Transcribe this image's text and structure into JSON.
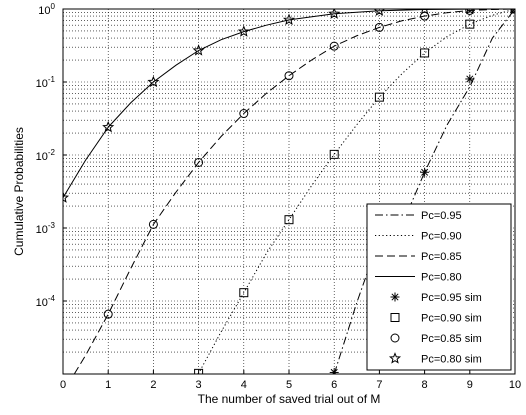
{
  "chart_data": {
    "type": "line",
    "title": "",
    "xlabel": "The number of saved trial out of M",
    "ylabel": "Cumulative Probabilities",
    "xlim": [
      0,
      10
    ],
    "ylim": [
      1e-05,
      1
    ],
    "yscale": "log",
    "grid": true,
    "legend_position": "bottom-right",
    "x_ticks": [
      "0",
      "1",
      "2",
      "3",
      "4",
      "5",
      "6",
      "7",
      "8",
      "9",
      "10"
    ],
    "y_ticks": [
      {
        "base": "10",
        "exp": "0"
      },
      {
        "base": "10",
        "exp": "-1"
      },
      {
        "base": "10",
        "exp": "-2"
      },
      {
        "base": "10",
        "exp": "-3"
      },
      {
        "base": "10",
        "exp": "-4"
      }
    ],
    "series": [
      {
        "name": "Pc=0.95",
        "style": "dashdot",
        "marker": "",
        "color": "#000000",
        "x": [
          6.0,
          6.5,
          7,
          7.5,
          8,
          8.5,
          9,
          9.5,
          10
        ],
        "y": [
          1e-05,
          9.5e-05,
          0.00072,
          0.0011,
          0.0058,
          0.026,
          0.086,
          0.4,
          1.0
        ]
      },
      {
        "name": "Pc=0.90",
        "style": "dotted",
        "marker": "",
        "color": "#000000",
        "x": [
          2.9,
          3,
          3.5,
          4,
          4.5,
          5,
          5.5,
          6,
          6.5,
          7,
          7.5,
          8,
          8.5,
          9,
          9.5,
          10
        ],
        "y": [
          1e-05,
          1.02e-05,
          3.8e-05,
          0.00013,
          0.00045,
          0.0013,
          0.0038,
          0.0102,
          0.026,
          0.062,
          0.13,
          0.25,
          0.42,
          0.62,
          0.82,
          1.0
        ]
      },
      {
        "name": "Pc=0.85",
        "style": "dashed",
        "marker": "",
        "color": "#000000",
        "x": [
          0.25,
          0.5,
          1,
          1.5,
          2,
          2.5,
          3,
          3.5,
          4,
          4.5,
          5,
          5.5,
          6,
          6.5,
          7,
          7.5,
          8,
          8.5,
          9,
          9.5,
          10
        ],
        "y": [
          1e-05,
          1.8e-05,
          6.6e-05,
          0.00028,
          0.00112,
          0.0031,
          0.0079,
          0.018,
          0.037,
          0.07,
          0.122,
          0.2,
          0.31,
          0.43,
          0.56,
          0.69,
          0.8,
          0.89,
          0.955,
          0.985,
          1.0
        ]
      },
      {
        "name": "Pc=0.80",
        "style": "solid",
        "marker": "",
        "color": "#000000",
        "x": [
          0,
          0.5,
          1,
          1.5,
          2,
          2.5,
          3,
          3.5,
          4,
          4.5,
          5,
          6,
          7,
          8,
          9,
          10
        ],
        "y": [
          0.0026,
          0.0085,
          0.024,
          0.052,
          0.1,
          0.17,
          0.27,
          0.38,
          0.49,
          0.6,
          0.71,
          0.86,
          0.945,
          0.985,
          0.997,
          1.0
        ]
      },
      {
        "name": "Pc=0.95 sim",
        "style": "none",
        "marker": "asterisk",
        "color": "#000000",
        "x": [
          6,
          8,
          9,
          10
        ],
        "y": [
          1.05e-05,
          0.0058,
          0.11,
          1.0
        ]
      },
      {
        "name": "Pc=0.90 sim",
        "style": "none",
        "marker": "square",
        "color": "#000000",
        "x": [
          3,
          4,
          5,
          6,
          7,
          8,
          9,
          10
        ],
        "y": [
          1.02e-05,
          0.00013,
          0.0013,
          0.0102,
          0.062,
          0.25,
          0.62,
          1.0
        ]
      },
      {
        "name": "Pc=0.85 sim",
        "style": "none",
        "marker": "circle",
        "color": "#000000",
        "x": [
          1,
          2,
          3,
          4,
          5,
          6,
          7,
          8,
          9,
          10
        ],
        "y": [
          6.6e-05,
          0.00112,
          0.0079,
          0.037,
          0.122,
          0.31,
          0.56,
          0.8,
          0.955,
          1.0
        ]
      },
      {
        "name": "Pc=0.80 sim",
        "style": "none",
        "marker": "star",
        "color": "#000000",
        "x": [
          0,
          1,
          2,
          3,
          4,
          5,
          6,
          7,
          8,
          9,
          10
        ],
        "y": [
          0.0026,
          0.024,
          0.1,
          0.27,
          0.49,
          0.71,
          0.86,
          0.945,
          0.985,
          0.997,
          1.0
        ]
      }
    ]
  }
}
